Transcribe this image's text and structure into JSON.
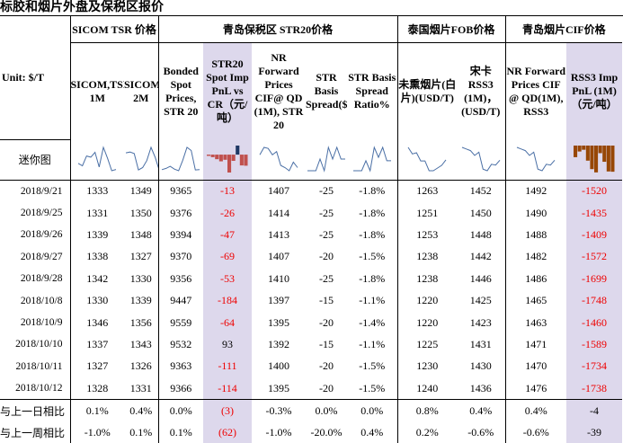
{
  "title": "标胶和烟片外盘及保税区报价",
  "groups": [
    "SICOM TSR 价格",
    "青岛保税区 STR20价格",
    "泰国烟片FOB价格",
    "青岛烟片CIF价格"
  ],
  "unit_label": "Unit: $/T",
  "columns": [
    "SICOM,TSR, 1M",
    "SICOM,TSR, 2M",
    "Bonded Spot Prices, STR 20",
    "STR20 Spot Imp PnL vs CR（元/吨）",
    "NR Forward Prices CIF@ QD (1M), STR 20",
    "STR Basis Spread($/T)",
    "STR Basis Spread Ratio%",
    "未熏烟片(白片)(USD/T)",
    "宋卡 RSS3 (1M)，(USD/T)",
    "NR Forward Prices CIF @ QD(1M), RSS3",
    "RSS3 Imp PnL (1M)（元/吨）"
  ],
  "sparkline_label": "迷你图",
  "rows": [
    {
      "date": "2018/9/21",
      "v": [
        "1333",
        "1349",
        "9365",
        "-13",
        "1407",
        "-25",
        "-1.8%",
        "1263",
        "1452",
        "1492",
        "-1520"
      ]
    },
    {
      "date": "2018/9/25",
      "v": [
        "1331",
        "1350",
        "9376",
        "-26",
        "1414",
        "-25",
        "-1.8%",
        "1251",
        "1450",
        "1490",
        "-1435"
      ]
    },
    {
      "date": "2018/9/26",
      "v": [
        "1339",
        "1348",
        "9394",
        "-47",
        "1413",
        "-25",
        "-1.8%",
        "1253",
        "1448",
        "1488",
        "-1409"
      ]
    },
    {
      "date": "2018/9/27",
      "v": [
        "1338",
        "1327",
        "9370",
        "-69",
        "1407",
        "-20",
        "-1.5%",
        "1238",
        "1442",
        "1482",
        "-1572"
      ]
    },
    {
      "date": "2018/9/28",
      "v": [
        "1342",
        "1330",
        "9356",
        "-53",
        "1410",
        "-25",
        "-1.8%",
        "1238",
        "1446",
        "1486",
        "-1699"
      ]
    },
    {
      "date": "2018/10/8",
      "v": [
        "1330",
        "1339",
        "9447",
        "-184",
        "1397",
        "-15",
        "-1.1%",
        "1220",
        "1425",
        "1465",
        "-1748"
      ]
    },
    {
      "date": "2018/10/9",
      "v": [
        "1346",
        "1356",
        "9559",
        "-64",
        "1395",
        "-20",
        "-1.4%",
        "1220",
        "1423",
        "1463",
        "-1460"
      ]
    },
    {
      "date": "2018/10/10",
      "v": [
        "1337",
        "1343",
        "9532",
        "93",
        "1392",
        "-15",
        "-1.1%",
        "1225",
        "1431",
        "1471",
        "-1589"
      ]
    },
    {
      "date": "2018/10/11",
      "v": [
        "1327",
        "1326",
        "9363",
        "-111",
        "1400",
        "-20",
        "-1.5%",
        "1230",
        "1430",
        "1470",
        "-1734"
      ]
    },
    {
      "date": "2018/10/12",
      "v": [
        "1328",
        "1331",
        "9366",
        "-114",
        "1395",
        "-20",
        "-1.5%",
        "1240",
        "1436",
        "1476",
        "-1738"
      ]
    }
  ],
  "summary": [
    {
      "label": "与上一日相比",
      "v": [
        "0.1%",
        "0.4%",
        "0.0%",
        "(3)",
        "-0.3%",
        "0.0%",
        "0.0%",
        "0.8%",
        "0.4%",
        "0.4%",
        "-4"
      ]
    },
    {
      "label": "与上一周相比",
      "v": [
        "-1.0%",
        "0.1%",
        "0.1%",
        "(62)",
        "-1.0%",
        "-20.0%",
        "0.4%",
        "0.2%",
        "-0.6%",
        "-0.6%",
        "-39"
      ]
    }
  ],
  "colors": {
    "highlight": "#ddd8ec",
    "negative": "#e00000",
    "spark_line": "#4a6fa5",
    "bar_neg": "#c0504d",
    "bar_pos": "#1f3864",
    "bar_brown": "#974706"
  }
}
